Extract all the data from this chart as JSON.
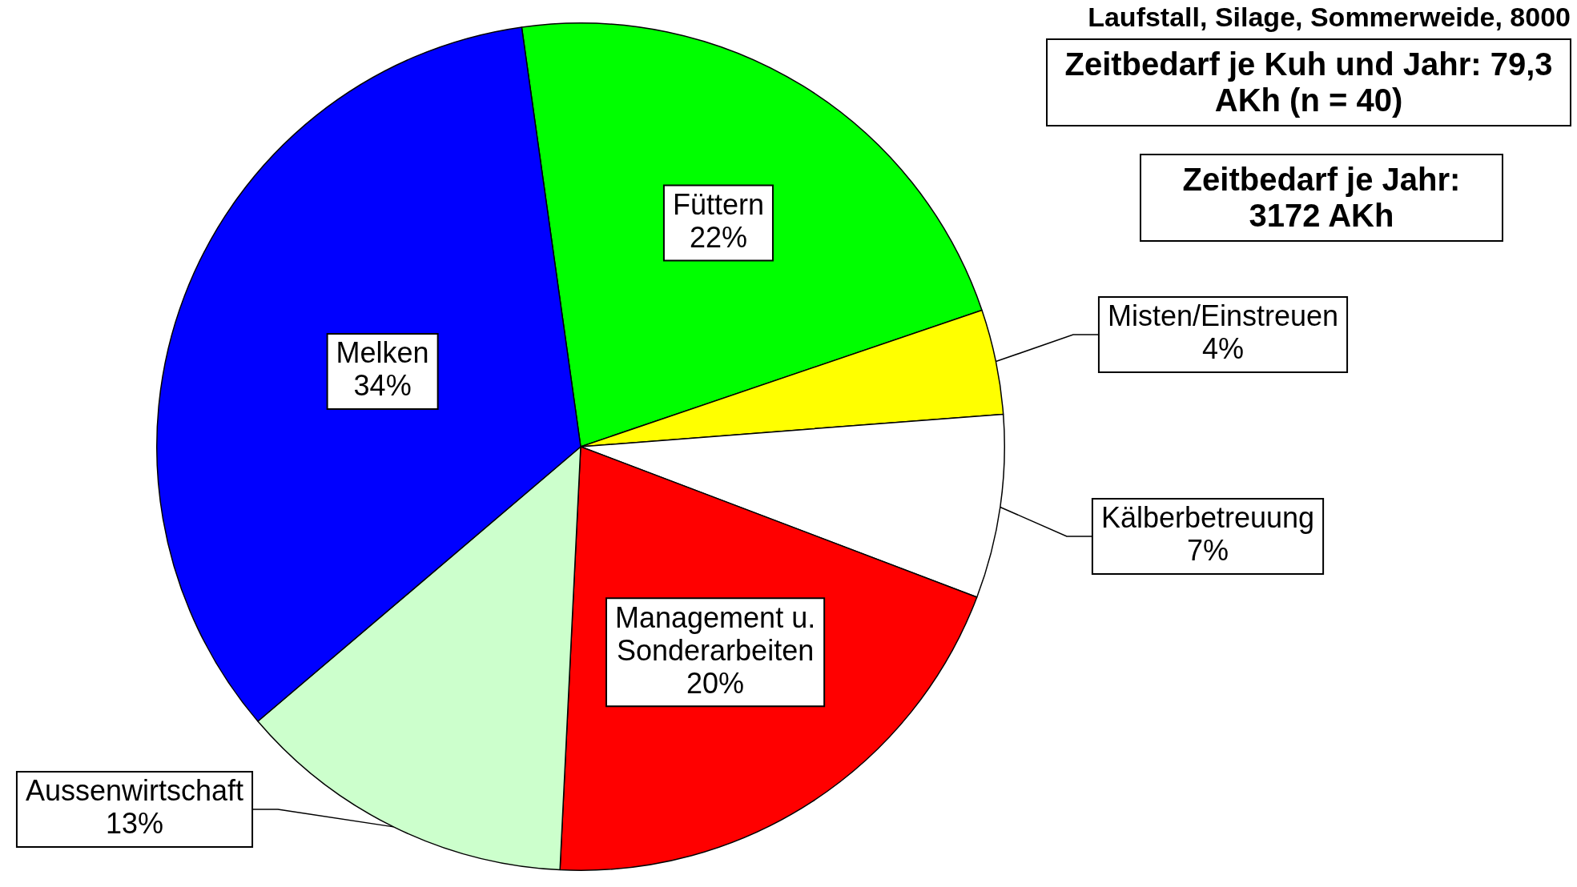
{
  "chart_data": {
    "type": "pie",
    "title": "Laufstall, Silage, Sommerweide, 8000",
    "categories": [
      "Füttern",
      "Misten/Einstreuen",
      "Kälberbetreuung",
      "Management u. Sonderarbeiten",
      "Aussenwirtschaft",
      "Melken"
    ],
    "values": [
      22,
      4,
      7,
      20,
      13,
      34
    ],
    "value_labels": [
      "22%",
      "4%",
      "7%",
      "20%",
      "13%",
      "34%"
    ],
    "colors": [
      "#00ff00",
      "#ffff00",
      "#ffffff",
      "#ff0000",
      "#ccffcc",
      "#0000ff"
    ],
    "legend": false,
    "annotations": [
      "Zeitbedarf je Kuh und Jahr: 79,3 AKh (n = 40)",
      "Zeitbedarf je Jahr: 3172 AKh"
    ]
  }
}
